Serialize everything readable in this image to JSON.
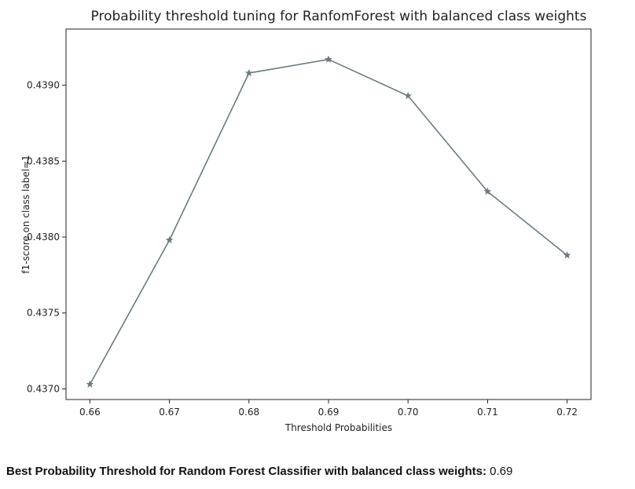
{
  "chart_data": {
    "type": "line",
    "title": "Probability threshold tuning for RanfomForest with balanced class weights",
    "xlabel": "Threshold Probabilities",
    "ylabel": "f1-score on class label=1",
    "x": [
      0.66,
      0.67,
      0.68,
      0.69,
      0.7,
      0.71,
      0.72
    ],
    "x_tick_labels": [
      "0.66",
      "0.67",
      "0.68",
      "0.69",
      "0.70",
      "0.71",
      "0.72"
    ],
    "y_ticks": [
      0.437,
      0.4375,
      0.438,
      0.4385,
      0.439
    ],
    "y_tick_labels": [
      "0.4370",
      "0.4375",
      "0.4380",
      "0.4385",
      "0.4390"
    ],
    "series": [
      {
        "values": [
          0.43703,
          0.43798,
          0.43908,
          0.43917,
          0.43893,
          0.4383,
          0.43788
        ],
        "marker": "star",
        "color": "#6b7b80"
      }
    ],
    "xlim": [
      0.657,
      0.723
    ],
    "ylim": [
      0.43693,
      0.43937
    ],
    "grid": false
  },
  "result": {
    "label": "Best Probability Threshold for Random Forest Classifier with balanced class weights:",
    "value": "0.69"
  }
}
